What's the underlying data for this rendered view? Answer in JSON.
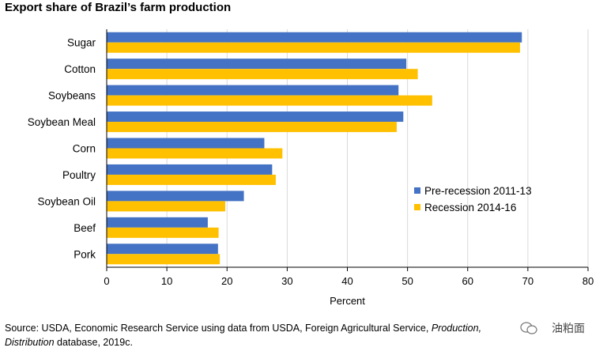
{
  "title": "Export share of Brazil’s farm production",
  "source": {
    "prefix": "Source: USDA, Economic Research Service using data from USDA, Foreign Agricultural Service, ",
    "italic1": "Production, ",
    "italic2": "Distribution",
    "suffix": " database, 2019c."
  },
  "watermark": "油粕面",
  "colors": {
    "pre": "#4472C4",
    "rec": "#FFC000",
    "grid": "#d9d9d9"
  },
  "chart_data": {
    "type": "bar",
    "orientation": "horizontal",
    "categories": [
      "Sugar",
      "Cotton",
      "Soybeans",
      "Soybean Meal",
      "Corn",
      "Poultry",
      "Soybean Oil",
      "Beef",
      "Pork"
    ],
    "series": [
      {
        "name": "Pre-recession 2011-13",
        "values": [
          69,
          49.8,
          48.5,
          49.3,
          26.2,
          27.5,
          22.8,
          16.8,
          18.5
        ]
      },
      {
        "name": "Recession 2014-16",
        "values": [
          68.7,
          51.7,
          54.1,
          48.2,
          29.2,
          28.1,
          19.7,
          18.6,
          18.8
        ]
      }
    ],
    "xlabel": "Percent",
    "xlim": [
      0,
      80
    ],
    "xticks": [
      0,
      10,
      20,
      30,
      40,
      50,
      60,
      70,
      80
    ],
    "grid": true,
    "legend": "right"
  }
}
